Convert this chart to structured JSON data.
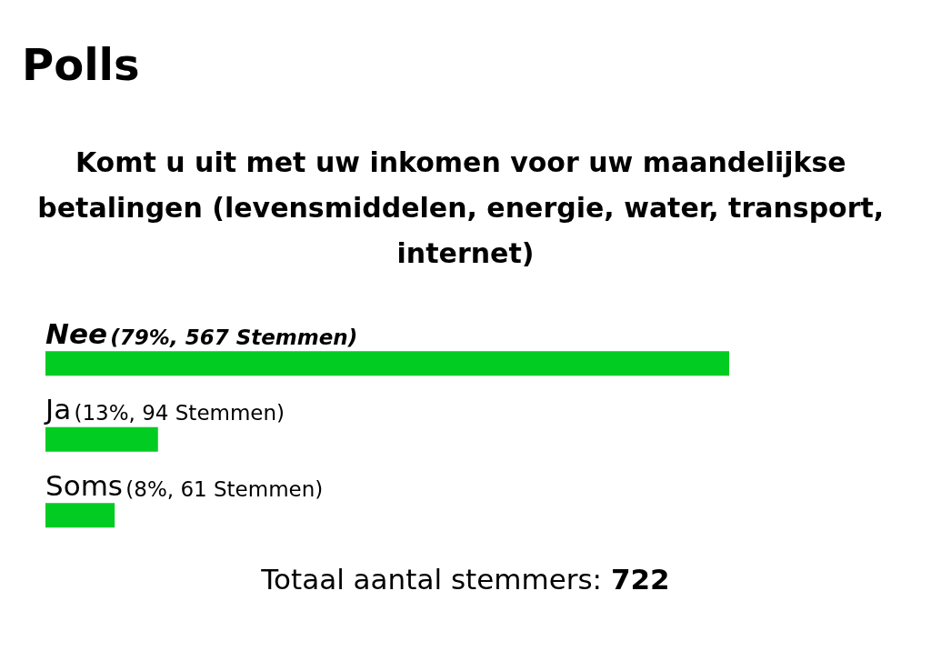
{
  "chart_data": {
    "type": "bar",
    "orientation": "horizontal",
    "title": "Polls",
    "subtitle": "Komt u uit met uw inkomen voor uw maandelijkse betalingen (levensmiddelen, energie, water, transport, internet)",
    "categories": [
      "Nee",
      "Ja",
      "Soms"
    ],
    "values": [
      79,
      13,
      8
    ],
    "color": "#00cc22",
    "value_labels": [
      "(79%, 567 Stemmen)",
      "(13%, 94 Stemmen)",
      "(8%, 61 Stemmen)"
    ],
    "annotations": [
      "Totaal aantal stemmers: 722"
    ]
  }
}
